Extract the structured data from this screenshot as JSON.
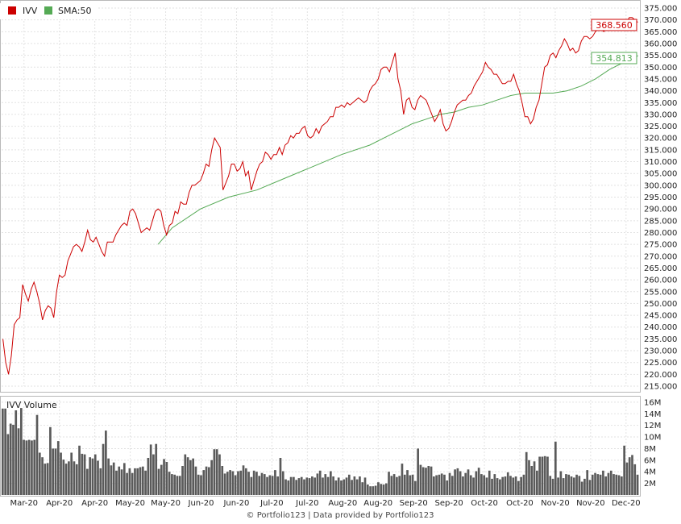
{
  "chart_data": {
    "type": "line",
    "symbol": "IVV",
    "legend": [
      {
        "label": "IVV",
        "color": "#cc0000"
      },
      {
        "label": "SMA:50",
        "color": "#55aa55"
      }
    ],
    "last_price_label": "368.560",
    "last_sma_label": "354.813",
    "price_ylim": [
      215,
      375
    ],
    "price_yticks": [
      215,
      220,
      225,
      230,
      235,
      240,
      245,
      250,
      255,
      260,
      265,
      270,
      275,
      280,
      285,
      290,
      295,
      300,
      305,
      310,
      315,
      320,
      325,
      330,
      335,
      340,
      345,
      350,
      355,
      360,
      365,
      370,
      375
    ],
    "xticks": [
      "Mar-20",
      "Apr-20",
      "Apr-20",
      "May-20",
      "May-20",
      "Jun-20",
      "Jun-20",
      "Jul-20",
      "Jul-20",
      "Aug-20",
      "Aug-20",
      "Sep-20",
      "Sep-20",
      "Oct-20",
      "Oct-20",
      "Nov-20",
      "Nov-20",
      "Dec-20"
    ],
    "price": [
      [
        0,
        235
      ],
      [
        1,
        225
      ],
      [
        2,
        220
      ],
      [
        3,
        228
      ],
      [
        4,
        241
      ],
      [
        5,
        243
      ],
      [
        6,
        244
      ],
      [
        7,
        258
      ],
      [
        8,
        254
      ],
      [
        9,
        251
      ],
      [
        10,
        256
      ],
      [
        11,
        259
      ],
      [
        12,
        255
      ],
      [
        13,
        250
      ],
      [
        14,
        243
      ],
      [
        15,
        247
      ],
      [
        16,
        249
      ],
      [
        17,
        248
      ],
      [
        18,
        244
      ],
      [
        19,
        255
      ],
      [
        20,
        262
      ],
      [
        21,
        261
      ],
      [
        22,
        262
      ],
      [
        23,
        268
      ],
      [
        24,
        271
      ],
      [
        25,
        274
      ],
      [
        26,
        275
      ],
      [
        27,
        274
      ],
      [
        28,
        272
      ],
      [
        29,
        276
      ],
      [
        30,
        281
      ],
      [
        31,
        277
      ],
      [
        32,
        276
      ],
      [
        33,
        278
      ],
      [
        34,
        275
      ],
      [
        35,
        272
      ],
      [
        36,
        270
      ],
      [
        37,
        276
      ],
      [
        38,
        276
      ],
      [
        39,
        276
      ],
      [
        40,
        279
      ],
      [
        41,
        281
      ],
      [
        42,
        283
      ],
      [
        43,
        284
      ],
      [
        44,
        283
      ],
      [
        45,
        289
      ],
      [
        46,
        290
      ],
      [
        47,
        288
      ],
      [
        48,
        284
      ],
      [
        49,
        280
      ],
      [
        50,
        281
      ],
      [
        51,
        282
      ],
      [
        52,
        281
      ],
      [
        53,
        285
      ],
      [
        54,
        289
      ],
      [
        55,
        290
      ],
      [
        56,
        289
      ],
      [
        57,
        283
      ],
      [
        58,
        279
      ],
      [
        59,
        283
      ],
      [
        60,
        284
      ],
      [
        61,
        289
      ],
      [
        62,
        288
      ],
      [
        63,
        293
      ],
      [
        64,
        292
      ],
      [
        65,
        292
      ],
      [
        66,
        297
      ],
      [
        67,
        300
      ],
      [
        68,
        300
      ],
      [
        69,
        301
      ],
      [
        70,
        302
      ],
      [
        71,
        305
      ],
      [
        72,
        309
      ],
      [
        73,
        308
      ],
      [
        74,
        315
      ],
      [
        75,
        320
      ],
      [
        76,
        318
      ],
      [
        77,
        316
      ],
      [
        78,
        298
      ],
      [
        79,
        301
      ],
      [
        80,
        304
      ],
      [
        81,
        309
      ],
      [
        82,
        309
      ],
      [
        83,
        306
      ],
      [
        84,
        307
      ],
      [
        85,
        310
      ],
      [
        86,
        304
      ],
      [
        87,
        306
      ],
      [
        88,
        298
      ],
      [
        89,
        302
      ],
      [
        90,
        306
      ],
      [
        91,
        309
      ],
      [
        92,
        310
      ],
      [
        93,
        314
      ],
      [
        94,
        313
      ],
      [
        95,
        311
      ],
      [
        96,
        313
      ],
      [
        97,
        313
      ],
      [
        98,
        316
      ],
      [
        99,
        313
      ],
      [
        100,
        317
      ],
      [
        101,
        318
      ],
      [
        102,
        321
      ],
      [
        103,
        320
      ],
      [
        104,
        322
      ],
      [
        105,
        322
      ],
      [
        106,
        324
      ],
      [
        107,
        325
      ],
      [
        108,
        321
      ],
      [
        109,
        320
      ],
      [
        110,
        321
      ],
      [
        111,
        324
      ],
      [
        112,
        322
      ],
      [
        113,
        325
      ],
      [
        114,
        326
      ],
      [
        115,
        327
      ],
      [
        116,
        329
      ],
      [
        117,
        329
      ],
      [
        118,
        333
      ],
      [
        119,
        333
      ],
      [
        120,
        334
      ],
      [
        121,
        333
      ],
      [
        122,
        335
      ],
      [
        123,
        334
      ],
      [
        124,
        335
      ],
      [
        125,
        336
      ],
      [
        126,
        337
      ],
      [
        127,
        336
      ],
      [
        128,
        335
      ],
      [
        129,
        336
      ],
      [
        130,
        340
      ],
      [
        131,
        342
      ],
      [
        132,
        343
      ],
      [
        133,
        345
      ],
      [
        134,
        349
      ],
      [
        135,
        350
      ],
      [
        136,
        350
      ],
      [
        137,
        348
      ],
      [
        138,
        352
      ],
      [
        139,
        356
      ],
      [
        140,
        345
      ],
      [
        141,
        340
      ],
      [
        142,
        330
      ],
      [
        143,
        336
      ],
      [
        144,
        337
      ],
      [
        145,
        333
      ],
      [
        146,
        332
      ],
      [
        147,
        336
      ],
      [
        148,
        338
      ],
      [
        149,
        337
      ],
      [
        150,
        336
      ],
      [
        151,
        333
      ],
      [
        152,
        330
      ],
      [
        153,
        327
      ],
      [
        154,
        329
      ],
      [
        155,
        332
      ],
      [
        156,
        326
      ],
      [
        157,
        323
      ],
      [
        158,
        324
      ],
      [
        159,
        327
      ],
      [
        160,
        331
      ],
      [
        161,
        334
      ],
      [
        162,
        335
      ],
      [
        163,
        336
      ],
      [
        164,
        336
      ],
      [
        165,
        338
      ],
      [
        166,
        339
      ],
      [
        167,
        342
      ],
      [
        168,
        344
      ],
      [
        169,
        346
      ],
      [
        170,
        348
      ],
      [
        171,
        352
      ],
      [
        172,
        350
      ],
      [
        173,
        349
      ],
      [
        174,
        347
      ],
      [
        175,
        347
      ],
      [
        176,
        345
      ],
      [
        177,
        343
      ],
      [
        178,
        343
      ],
      [
        179,
        344
      ],
      [
        180,
        344
      ],
      [
        181,
        347
      ],
      [
        182,
        343
      ],
      [
        183,
        340
      ],
      [
        184,
        335
      ],
      [
        185,
        329
      ],
      [
        186,
        329
      ],
      [
        187,
        326
      ],
      [
        188,
        328
      ],
      [
        189,
        333
      ],
      [
        190,
        336
      ],
      [
        191,
        343
      ],
      [
        192,
        350
      ],
      [
        193,
        351
      ],
      [
        194,
        355
      ],
      [
        195,
        356
      ],
      [
        196,
        354
      ],
      [
        197,
        357
      ],
      [
        198,
        359
      ],
      [
        199,
        362
      ],
      [
        200,
        360
      ],
      [
        201,
        357
      ],
      [
        202,
        358
      ],
      [
        203,
        356
      ],
      [
        204,
        357
      ],
      [
        205,
        361
      ],
      [
        206,
        363
      ],
      [
        207,
        363
      ],
      [
        208,
        362
      ],
      [
        209,
        363
      ],
      [
        210,
        365
      ],
      [
        211,
        366
      ],
      [
        212,
        366
      ],
      [
        213,
        365
      ],
      [
        214,
        367
      ],
      [
        215,
        368
      ],
      [
        216,
        368
      ],
      [
        217,
        367
      ],
      [
        218,
        369
      ],
      [
        219,
        370
      ],
      [
        220,
        368
      ],
      [
        221,
        369
      ],
      [
        222,
        371
      ],
      [
        223,
        371
      ],
      [
        224,
        370
      ],
      [
        225,
        369
      ]
    ],
    "sma": [
      [
        55,
        275
      ],
      [
        60,
        282
      ],
      [
        70,
        290
      ],
      [
        80,
        295
      ],
      [
        90,
        298
      ],
      [
        100,
        303
      ],
      [
        110,
        308
      ],
      [
        120,
        313
      ],
      [
        130,
        317
      ],
      [
        135,
        320
      ],
      [
        140,
        323
      ],
      [
        145,
        326
      ],
      [
        150,
        328
      ],
      [
        155,
        330
      ],
      [
        160,
        331
      ],
      [
        165,
        333
      ],
      [
        170,
        334
      ],
      [
        175,
        336
      ],
      [
        180,
        338
      ],
      [
        185,
        339
      ],
      [
        190,
        339
      ],
      [
        195,
        339
      ],
      [
        200,
        340
      ],
      [
        205,
        342
      ],
      [
        210,
        345
      ],
      [
        215,
        349
      ],
      [
        220,
        352
      ],
      [
        223,
        353
      ],
      [
        225,
        354.8
      ]
    ],
    "volume_label": "IVV Volume",
    "volume_yticks": [
      "2M",
      "4M",
      "6M",
      "8M",
      "10M",
      "12M",
      "14M",
      "16M"
    ],
    "volume": [
      14.9,
      14.9,
      10.5,
      12.3,
      12.1,
      14.6,
      11.5,
      15.0,
      9.5,
      9.4,
      9.5,
      9.4,
      9.5,
      13.8,
      7.3,
      6.5,
      5.4,
      5.5,
      11.7,
      8.0,
      8.0,
      9.3,
      7.3,
      6.1,
      5.4,
      5.8,
      7.3,
      5.8,
      5.3,
      8.5,
      7.1,
      7.0,
      4.5,
      6.5,
      6.3,
      7.0,
      5.9,
      4.6,
      8.8,
      11.1,
      6.3,
      5.1,
      5.6,
      4.2,
      4.9,
      4.4,
      5.5,
      3.8,
      4.6,
      3.8,
      4.6,
      4.6,
      4.8,
      4.9,
      4.2,
      6.4,
      8.7,
      7.0,
      8.8,
      4.5,
      5.2,
      6.2,
      5.7,
      4.0,
      3.6,
      3.5,
      3.3,
      3.3,
      5.0,
      7.0,
      6.5,
      6.0,
      6.3,
      4.9,
      3.5,
      3.4,
      4.3,
      4.9,
      4.8,
      6.0,
      7.9,
      7.9,
      7.0,
      5.0,
      3.7,
      4.0,
      4.3,
      4.1,
      3.4,
      4.1,
      4.2,
      5.1,
      4.6,
      4.0,
      3.1,
      4.2,
      4.0,
      3.3,
      3.8,
      3.6,
      3.1,
      3.4,
      3.3,
      4.3,
      3.2,
      6.4,
      4.1,
      2.7,
      2.5,
      3.1,
      3.1,
      2.6,
      2.9,
      3.1,
      2.7,
      3.0,
      2.9,
      3.2,
      3.0,
      3.7,
      4.2,
      3.0,
      3.6,
      3.1,
      4.1,
      3.2,
      2.5,
      3.0,
      2.5,
      2.7,
      3.0,
      3.5,
      2.6,
      3.2,
      2.7,
      3.2,
      2.2,
      3.0,
      1.8,
      1.5,
      1.5,
      1.6,
      2.2,
      1.9,
      1.8,
      2.0,
      4.0,
      3.3,
      3.6,
      3.1,
      3.3,
      5.4,
      3.5,
      4.3,
      3.4,
      3.5,
      2.4,
      8.0,
      5.2,
      4.8,
      4.7,
      5.0,
      4.9,
      3.2,
      3.4,
      3.5,
      3.7,
      3.5,
      2.5,
      3.8,
      3.3,
      4.4,
      4.6,
      4.1,
      3.2,
      3.8,
      4.4,
      3.4,
      3.0,
      4.1,
      4.7,
      3.6,
      3.4,
      3.0,
      4.2,
      2.8,
      3.6,
      2.9,
      2.7,
      3.1,
      3.2,
      3.9,
      3.3,
      3.0,
      3.2,
      2.4,
      3.1,
      3.5,
      7.4,
      6.0,
      5.0,
      5.8,
      4.2,
      6.6,
      6.6,
      6.7,
      6.6,
      3.3,
      2.8,
      9.2,
      3.0,
      4.1,
      2.9,
      3.6,
      3.5,
      3.2,
      3.0,
      3.5,
      3.3,
      2.3,
      2.8,
      4.3,
      2.6,
      3.5,
      3.8,
      3.6,
      3.5,
      4.2,
      3.2,
      3.8,
      4.2,
      3.6,
      3.5,
      3.4,
      3.2,
      8.5,
      5.6,
      6.5,
      6.9,
      5.3,
      3.5
    ],
    "volume_ylim": [
      0,
      16.4
    ],
    "footer": "© Portfolio123 | Data provided by Portfolio123"
  }
}
